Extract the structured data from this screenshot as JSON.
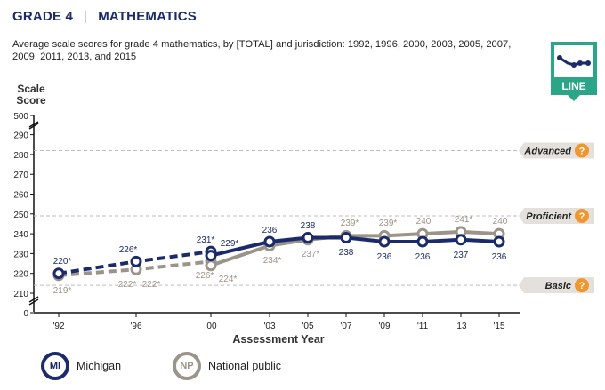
{
  "header": {
    "grade": "GRADE 4",
    "subject": "MATHEMATICS"
  },
  "subtitle": "Average scale scores for grade 4 mathematics, by [TOTAL] and jurisdiction: 1992, 1996, 2000, 2003, 2005, 2007, 2009, 2011, 2013, and 2015",
  "badge": {
    "label": "LINE",
    "icon": "line-chart-icon"
  },
  "colors": {
    "michigan": "#1b2a6b",
    "national": "#9b9488",
    "accent": "#2aa588",
    "help": "#f0962f"
  },
  "legend": [
    {
      "abbr": "MI",
      "label": "Michigan"
    },
    {
      "abbr": "NP",
      "label": "National public"
    }
  ],
  "chart_data": {
    "type": "line",
    "title": "Average scale scores for grade 4 mathematics",
    "xlabel": "Assessment Year",
    "ylabel": "Scale Score",
    "x": [
      "'92",
      "'96",
      "'00",
      "'03",
      "'05",
      "'07",
      "'09",
      "'11",
      "'13",
      "'15"
    ],
    "ylim": [
      210,
      290
    ],
    "yticks": [
      210,
      220,
      230,
      240,
      250,
      260,
      270,
      280,
      290
    ],
    "y_axis_break_top": 500,
    "y_axis_break_bottom": 0,
    "achievement_levels": [
      {
        "label": "Advanced",
        "value": 282
      },
      {
        "label": "Proficient",
        "value": 249
      },
      {
        "label": "Basic",
        "value": 214
      }
    ],
    "series": [
      {
        "name": "Michigan",
        "values": [
          220,
          226,
          231,
          236,
          238,
          238,
          236,
          236,
          237,
          236
        ],
        "labels": [
          "220*",
          "226*",
          "231*",
          "236",
          "238",
          "238",
          "236",
          "236",
          "237",
          "236"
        ],
        "dashed_through_index": 2,
        "extra_point": {
          "x_index": 2,
          "value": 229,
          "label": "229*"
        }
      },
      {
        "name": "National public",
        "values": [
          219,
          222,
          226,
          234,
          237,
          239,
          239,
          240,
          241,
          240
        ],
        "labels": [
          "219*",
          "222*",
          "226*",
          "234*",
          "237*",
          "239*",
          "239*",
          "240",
          "241*",
          "240"
        ],
        "dashed_through_index": 2,
        "extra_point": {
          "x_index": 2,
          "value": 224,
          "label": "224*"
        },
        "extra_label": {
          "x_index": 1,
          "label": "222*"
        }
      }
    ]
  }
}
